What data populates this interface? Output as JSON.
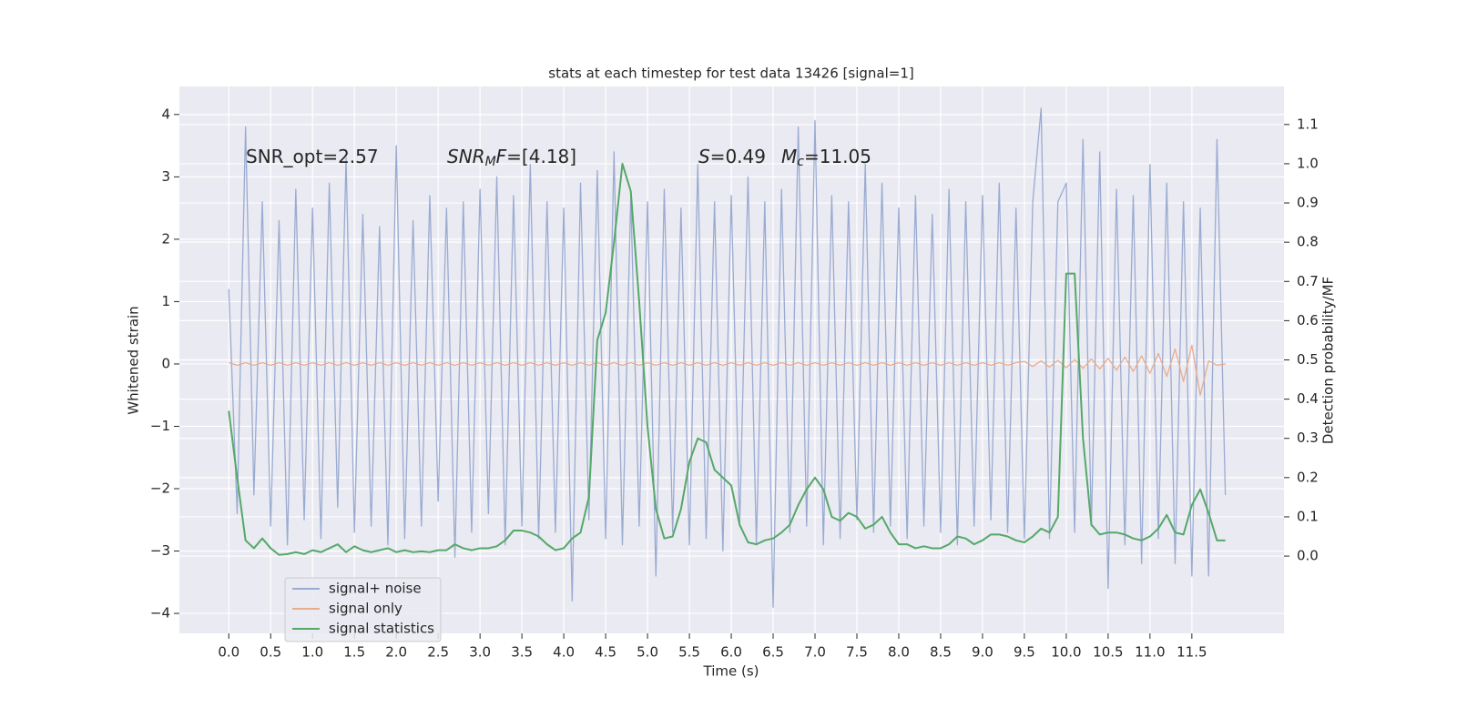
{
  "chart_data": {
    "type": "line",
    "title": "stats at each timestep for test data 13426 [signal=1]",
    "xlabel": "Time (s)",
    "ylabel": "Whitened strain",
    "y2label": "Detection probability/MF",
    "grid": true,
    "legend": "lower left",
    "xlim": [
      -0.59,
      12.6
    ],
    "ylim": [
      -4.32,
      4.45
    ],
    "y2lim": [
      -0.197,
      1.197
    ],
    "xticks": [
      {
        "value": 0,
        "label": "0.0"
      },
      0.5,
      {
        "value": 1,
        "label": "1.0"
      },
      1.5,
      {
        "value": 2,
        "label": "2.0"
      },
      2.5,
      {
        "value": 3,
        "label": "3.0"
      },
      3.5,
      {
        "value": 4,
        "label": "4.0"
      },
      4.5,
      {
        "value": 5,
        "label": "5.0"
      },
      5.5,
      {
        "value": 6,
        "label": "6.0"
      },
      6.5,
      {
        "value": 7,
        "label": "7.0"
      },
      7.5,
      {
        "value": 8,
        "label": "8.0"
      },
      8.5,
      {
        "value": 9,
        "label": "9.0"
      },
      9.5,
      {
        "value": 10,
        "label": "10.0"
      },
      10.5,
      {
        "value": 11,
        "label": "11.0"
      },
      11.5
    ],
    "yticks": [
      {
        "value": -4,
        "label": "−4"
      },
      {
        "value": -3,
        "label": "−3"
      },
      {
        "value": -2,
        "label": "−2"
      },
      {
        "value": -1,
        "label": "−1"
      },
      0,
      1,
      2,
      3,
      4
    ],
    "y2ticks": [
      {
        "value": 0,
        "label": "0.0"
      },
      0.1,
      0.2,
      0.3,
      0.4,
      0.5,
      0.6,
      0.7,
      0.8,
      0.9,
      {
        "value": 1,
        "label": "1.0"
      },
      1.1
    ],
    "annotations": [
      {
        "text": "SNR_opt=2.57"
      },
      {
        "math": "SNR",
        "sub": "M",
        "math2": "F",
        "text": "=[4.18]"
      },
      {
        "math": "S",
        "text": "=0.49"
      },
      {
        "math": "M",
        "sub": "c",
        "text": "=11.05"
      }
    ],
    "x": [
      0,
      0.1,
      0.2,
      0.3,
      0.4,
      0.5,
      0.6,
      0.7,
      0.8,
      0.9,
      1,
      1.1,
      1.2,
      1.3,
      1.4,
      1.5,
      1.6,
      1.7,
      1.8,
      1.9,
      2,
      2.1,
      2.2,
      2.3,
      2.4,
      2.5,
      2.6,
      2.7,
      2.8,
      2.9,
      3,
      3.1,
      3.2,
      3.3,
      3.4,
      3.5,
      3.6,
      3.7,
      3.8,
      3.9,
      4,
      4.1,
      4.2,
      4.3,
      4.4,
      4.5,
      4.6,
      4.7,
      4.8,
      4.9,
      5,
      5.1,
      5.2,
      5.3,
      5.4,
      5.5,
      5.6,
      5.7,
      5.8,
      5.9,
      6,
      6.1,
      6.2,
      6.3,
      6.4,
      6.5,
      6.6,
      6.7,
      6.8,
      6.9,
      7,
      7.1,
      7.2,
      7.3,
      7.4,
      7.5,
      7.6,
      7.7,
      7.8,
      7.9,
      8,
      8.1,
      8.2,
      8.3,
      8.4,
      8.5,
      8.6,
      8.7,
      8.8,
      8.9,
      9,
      9.1,
      9.2,
      9.3,
      9.4,
      9.5,
      9.6,
      9.7,
      9.8,
      9.9,
      10,
      10.1,
      10.2,
      10.3,
      10.4,
      10.5,
      10.6,
      10.7,
      10.8,
      10.9,
      11,
      11.1,
      11.2,
      11.3,
      11.4,
      11.5,
      11.6,
      11.7,
      11.8,
      11.9
    ],
    "series": [
      {
        "name": "signal+ noise",
        "color": "#9aabd1",
        "values": [
          1.2,
          -2.4,
          3.8,
          -2.1,
          2.6,
          -2.6,
          2.3,
          -2.9,
          2.8,
          -2.5,
          2.5,
          -2.8,
          2.9,
          -2.3,
          3.3,
          -2.7,
          2.4,
          -2.6,
          2.2,
          -2.9,
          3.5,
          -2.8,
          2.3,
          -2.6,
          2.7,
          -2.2,
          2.5,
          -3.1,
          2.6,
          -2.7,
          2.8,
          -2.4,
          3.0,
          -2.9,
          2.7,
          -2.6,
          3.2,
          -2.8,
          2.6,
          -2.7,
          2.5,
          -3.8,
          2.9,
          -2.5,
          3.1,
          -2.8,
          3.4,
          -2.9,
          2.7,
          -2.6,
          2.6,
          -3.4,
          2.8,
          -2.7,
          2.5,
          -2.9,
          3.2,
          -2.8,
          2.6,
          -3.0,
          2.7,
          -2.6,
          3.0,
          -2.9,
          2.6,
          -3.9,
          2.8,
          -2.7,
          3.8,
          -2.6,
          3.9,
          -2.9,
          2.7,
          -2.8,
          2.6,
          -2.5,
          3.2,
          -2.7,
          2.9,
          -2.6,
          2.5,
          -2.8,
          2.7,
          -2.6,
          2.4,
          -2.7,
          2.8,
          -2.9,
          2.6,
          -2.6,
          2.7,
          -2.5,
          2.9,
          -2.7,
          2.5,
          -2.8,
          2.6,
          4.1,
          -2.8,
          2.6,
          2.9,
          -2.7,
          3.6,
          -2.6,
          3.4,
          -3.6,
          2.8,
          -2.9,
          2.7,
          -3.2,
          3.2,
          -2.8,
          2.9,
          -3.2,
          2.6,
          -3.4,
          2.5,
          -3.4,
          3.6,
          -2.1
        ]
      },
      {
        "name": "signal only",
        "color": "#e8ac8c",
        "values": [
          0.02,
          -0.02,
          0.02,
          -0.02,
          0.02,
          -0.02,
          0.02,
          -0.02,
          0.02,
          -0.02,
          0.02,
          -0.02,
          0.02,
          -0.02,
          0.02,
          -0.02,
          0.02,
          -0.02,
          0.02,
          -0.02,
          0.02,
          -0.02,
          0.02,
          -0.02,
          0.02,
          -0.02,
          0.02,
          -0.02,
          0.02,
          -0.02,
          0.02,
          -0.02,
          0.02,
          -0.02,
          0.02,
          -0.02,
          0.02,
          -0.02,
          0.02,
          -0.02,
          0.02,
          -0.02,
          0.02,
          -0.02,
          0.02,
          -0.02,
          0.02,
          -0.02,
          0.02,
          -0.02,
          0.02,
          -0.02,
          0.02,
          -0.02,
          0.02,
          -0.02,
          0.02,
          -0.02,
          0.02,
          -0.02,
          0.02,
          -0.02,
          0.02,
          -0.02,
          0.02,
          -0.02,
          0.02,
          -0.02,
          0.02,
          -0.02,
          0.02,
          -0.02,
          0.02,
          -0.02,
          0.02,
          -0.02,
          0.02,
          -0.02,
          0.02,
          -0.02,
          0.02,
          -0.02,
          0.02,
          -0.02,
          0.02,
          -0.02,
          0.02,
          -0.02,
          0.02,
          -0.02,
          0.02,
          -0.02,
          0.02,
          -0.02,
          0.02,
          0.04,
          -0.04,
          0.05,
          -0.05,
          0.06,
          -0.06,
          0.07,
          -0.07,
          0.08,
          -0.08,
          0.09,
          -0.1,
          0.11,
          -0.12,
          0.13,
          -0.15,
          0.17,
          -0.2,
          0.24,
          -0.28,
          0.3,
          -0.5,
          0.05,
          -0.02,
          0.0
        ]
      },
      {
        "name": "signal statistics",
        "color": "#55a868",
        "axis": "y2",
        "values": [
          0.37,
          0.2,
          0.04,
          0.02,
          0.045,
          0.02,
          0.003,
          0.005,
          0.01,
          0.005,
          0.015,
          0.01,
          0.02,
          0.03,
          0.01,
          0.025,
          0.015,
          0.01,
          0.015,
          0.02,
          0.01,
          0.015,
          0.01,
          0.012,
          0.01,
          0.015,
          0.015,
          0.03,
          0.02,
          0.015,
          0.02,
          0.02,
          0.025,
          0.04,
          0.065,
          0.065,
          0.06,
          0.05,
          0.03,
          0.015,
          0.02,
          0.045,
          0.06,
          0.15,
          0.55,
          0.62,
          0.8,
          1.0,
          0.93,
          0.65,
          0.33,
          0.12,
          0.045,
          0.05,
          0.12,
          0.24,
          0.3,
          0.29,
          0.22,
          0.2,
          0.18,
          0.08,
          0.035,
          0.03,
          0.04,
          0.045,
          0.06,
          0.08,
          0.13,
          0.17,
          0.2,
          0.17,
          0.1,
          0.09,
          0.11,
          0.1,
          0.07,
          0.08,
          0.1,
          0.06,
          0.03,
          0.03,
          0.02,
          0.025,
          0.02,
          0.02,
          0.03,
          0.05,
          0.045,
          0.03,
          0.04,
          0.055,
          0.055,
          0.05,
          0.04,
          0.035,
          0.05,
          0.07,
          0.06,
          0.1,
          0.72,
          0.72,
          0.3,
          0.08,
          0.055,
          0.06,
          0.06,
          0.055,
          0.045,
          0.04,
          0.05,
          0.07,
          0.105,
          0.06,
          0.055,
          0.13,
          0.17,
          0.11,
          0.04,
          0.04
        ]
      }
    ]
  }
}
